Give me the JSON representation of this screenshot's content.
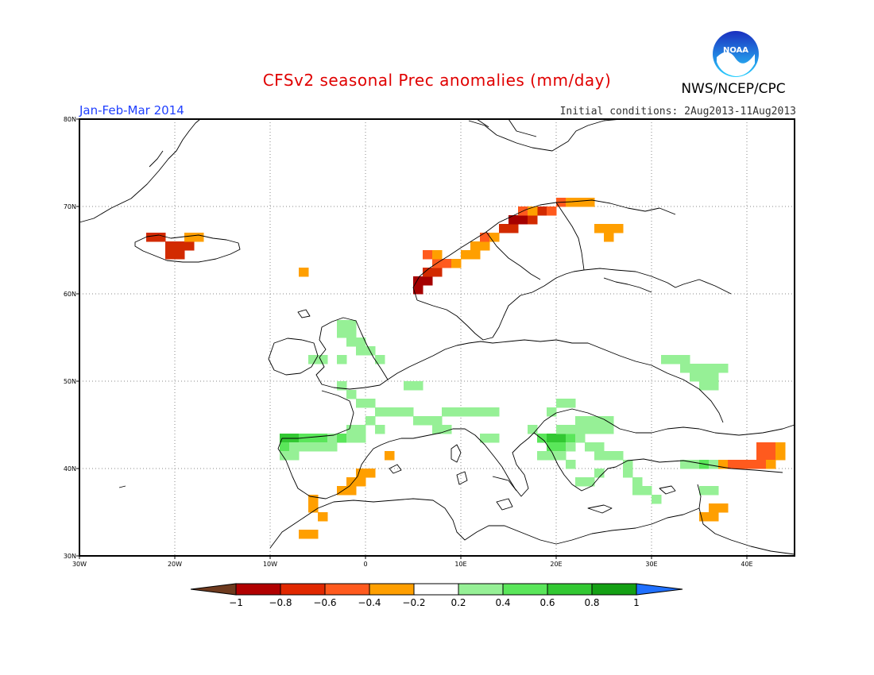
{
  "header": {
    "title": "CFSv2 seasonal Prec anomalies (mm/day)",
    "period": "Jan-Feb-Mar 2014",
    "initial_conditions": "Initial conditions: 2Aug2013-11Aug2013",
    "agency": "NWS/NCEP/CPC",
    "logo_text": "NOAA"
  },
  "map": {
    "projection": "lat-lon",
    "lon_range": [
      -30,
      45
    ],
    "lat_range": [
      30,
      80
    ],
    "lon_ticks": [
      "30W",
      "20W",
      "10W",
      "0",
      "10E",
      "20E",
      "30E",
      "40E"
    ],
    "lat_ticks": [
      "30N",
      "40N",
      "50N",
      "60N",
      "70N",
      "80N"
    ],
    "grid": "dotted",
    "colors": {
      "-1": "#6e3a1e",
      "-0.8": "#a50000",
      "-0.6": "#d22a00",
      "-0.4": "#ff5a1e",
      "-0.2": "#ff9f00",
      "0.2": "#96f096",
      "0.4": "#5ae65a",
      "0.6": "#32c832",
      "0.8": "#14a014",
      "1": "#2070ff"
    }
  },
  "colorbar": {
    "labels": [
      "-1",
      "-0.8",
      "-0.6",
      "-0.4",
      "-0.2",
      "0.2",
      "0.4",
      "0.6",
      "0.8",
      "1"
    ],
    "colors": [
      "#b10000",
      "#e12800",
      "#ff5a1e",
      "#ff9f00",
      "#ffffff",
      "#96f096",
      "#5ae65a",
      "#32c832",
      "#14a014"
    ],
    "low_arrow_color": "#6e3a1e",
    "high_arrow_color": "#2070ff"
  }
}
